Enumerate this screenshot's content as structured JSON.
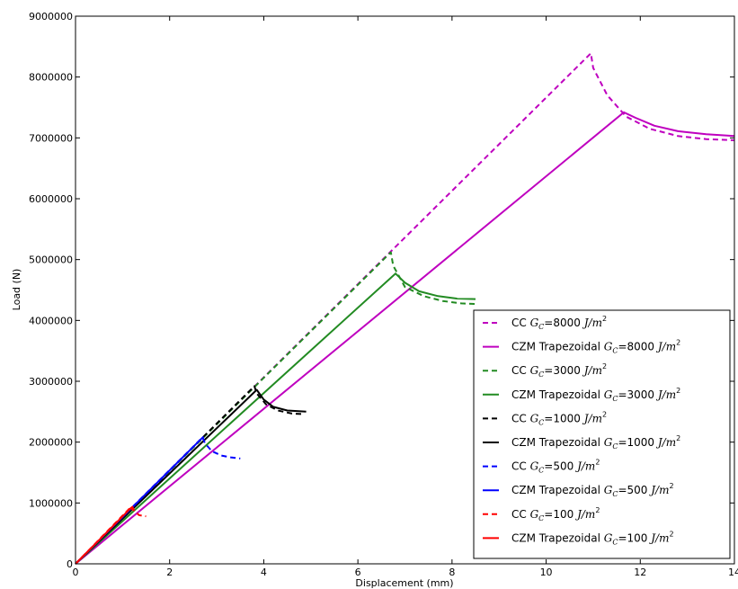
{
  "chart_data": {
    "type": "line",
    "title": "",
    "xlabel": "Displacement (mm)",
    "ylabel": "Load (N)",
    "xlim": [
      0,
      14
    ],
    "ylim": [
      0,
      9000000
    ],
    "xticks": [
      "0",
      "2",
      "4",
      "6",
      "8",
      "10",
      "12",
      "14"
    ],
    "yticks": [
      "0",
      "1000000",
      "2000000",
      "3000000",
      "4000000",
      "5000000",
      "6000000",
      "7000000",
      "8000000",
      "9000000"
    ],
    "grid": false,
    "legend_position": "lower-right",
    "series": [
      {
        "name": "CC",
        "gc": "8000",
        "color": "#BF00BF",
        "dashed": true,
        "x": [
          0,
          10.95,
          11.0,
          11.3,
          11.7,
          12.2,
          12.8,
          13.4,
          14.0
        ],
        "y": [
          0,
          8390000,
          8150000,
          7700000,
          7350000,
          7150000,
          7030000,
          6980000,
          6960000
        ]
      },
      {
        "name": "CZM Trapezoidal",
        "gc": "8000",
        "color": "#BF00BF",
        "dashed": false,
        "x": [
          0,
          11.65,
          11.9,
          12.3,
          12.8,
          13.4,
          14.0
        ],
        "y": [
          0,
          7420000,
          7330000,
          7200000,
          7110000,
          7060000,
          7030000
        ]
      },
      {
        "name": "CC",
        "gc": "3000",
        "color": "#228B22",
        "dashed": true,
        "x": [
          0,
          6.7,
          6.75,
          7.0,
          7.4,
          7.8,
          8.2,
          8.5
        ],
        "y": [
          0,
          5120000,
          4900000,
          4550000,
          4400000,
          4320000,
          4280000,
          4270000
        ]
      },
      {
        "name": "CZM Trapezoidal",
        "gc": "3000",
        "color": "#228B22",
        "dashed": false,
        "x": [
          0,
          6.8,
          7.0,
          7.3,
          7.7,
          8.1,
          8.5
        ],
        "y": [
          0,
          4770000,
          4620000,
          4480000,
          4400000,
          4360000,
          4350000
        ]
      },
      {
        "name": "CC",
        "gc": "1000",
        "color": "#000000",
        "dashed": true,
        "x": [
          0,
          3.8,
          3.85,
          4.05,
          4.3,
          4.6,
          4.85
        ],
        "y": [
          0,
          2920000,
          2800000,
          2620000,
          2520000,
          2470000,
          2460000
        ]
      },
      {
        "name": "CZM Trapezoidal",
        "gc": "1000",
        "color": "#000000",
        "dashed": false,
        "x": [
          0,
          3.85,
          4.0,
          4.2,
          4.5,
          4.9
        ],
        "y": [
          0,
          2860000,
          2700000,
          2580000,
          2520000,
          2500000
        ]
      },
      {
        "name": "CC",
        "gc": "500",
        "color": "#0000FF",
        "dashed": true,
        "x": [
          0,
          2.7,
          2.75,
          2.9,
          3.1,
          3.3,
          3.5
        ],
        "y": [
          0,
          2080000,
          1980000,
          1850000,
          1780000,
          1750000,
          1730000
        ]
      },
      {
        "name": "CZM Trapezoidal",
        "gc": "500",
        "color": "#0000FF",
        "dashed": false,
        "x": [
          0,
          2.72
        ],
        "y": [
          0,
          2090000
        ]
      },
      {
        "name": "CC",
        "gc": "100",
        "color": "#FF0000",
        "dashed": true,
        "x": [
          0,
          1.2,
          1.25,
          1.35,
          1.5
        ],
        "y": [
          0,
          950000,
          870000,
          800000,
          780000
        ]
      },
      {
        "name": "CZM Trapezoidal",
        "gc": "100",
        "color": "#FF0000",
        "dashed": false,
        "x": [
          0,
          1.18,
          1.22
        ],
        "y": [
          0,
          920000,
          880000
        ]
      }
    ]
  }
}
